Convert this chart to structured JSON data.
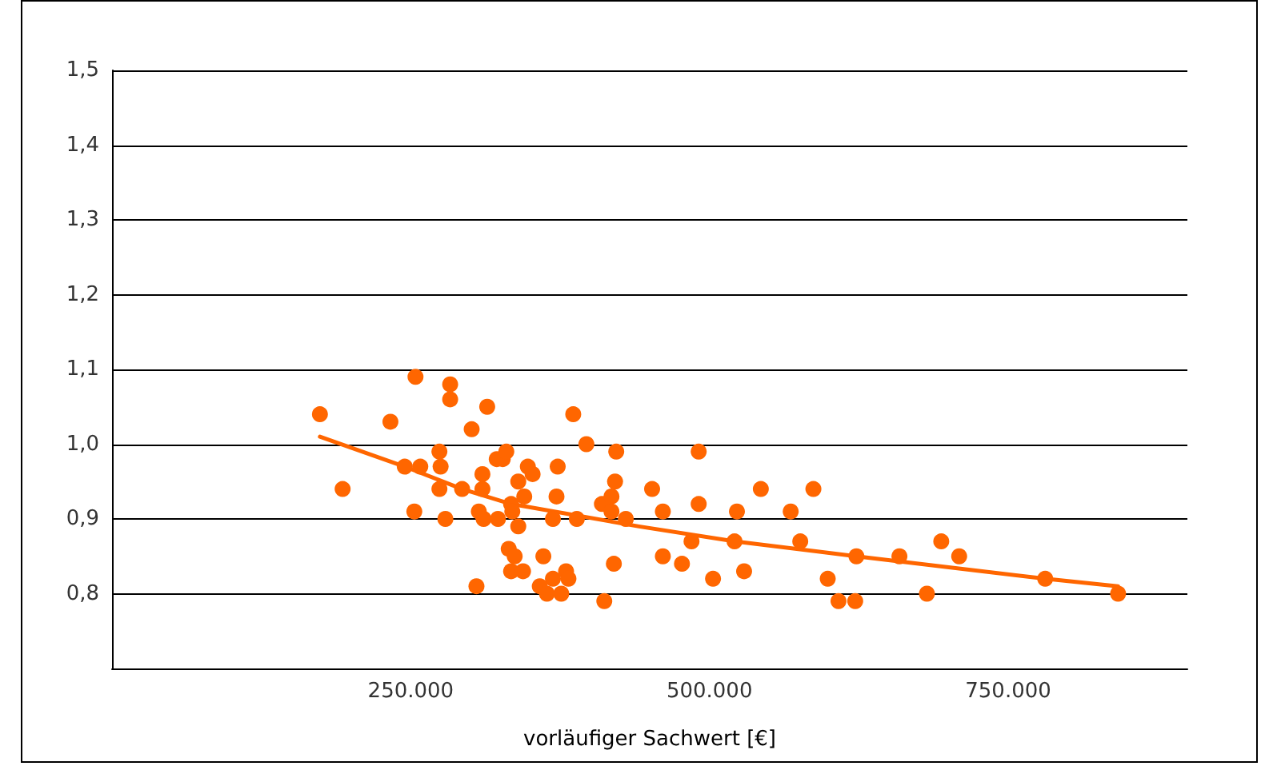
{
  "chart_data": {
    "type": "scatter",
    "xlabel": "vorläufiger Sachwert [€]",
    "xlim": [
      0,
      900000
    ],
    "xticks": [
      {
        "value": 250000,
        "label": "250.000"
      },
      {
        "value": 500000,
        "label": "500.000"
      },
      {
        "value": 750000,
        "label": "750.000"
      }
    ],
    "ylim": [
      0.7,
      1.5
    ],
    "yticks": [
      {
        "value": 0.8,
        "label": "0,8"
      },
      {
        "value": 0.9,
        "label": "0,9"
      },
      {
        "value": 1.0,
        "label": "1,0"
      },
      {
        "value": 1.1,
        "label": "1,1"
      },
      {
        "value": 1.2,
        "label": "1,2"
      },
      {
        "value": 1.3,
        "label": "1,3"
      },
      {
        "value": 1.4,
        "label": "1,4"
      },
      {
        "value": 1.5,
        "label": "1,5"
      }
    ],
    "grid": "y",
    "series": [
      {
        "marker": "circle",
        "color": "#ff6600",
        "x": [
          174000,
          193000,
          233000,
          254000,
          253000,
          245000,
          258000,
          274000,
          275000,
          274000,
          279000,
          283000,
          283000,
          293000,
          301000,
          305000,
          314000,
          310000,
          310000,
          307000,
          311000,
          323000,
          322000,
          327000,
          330000,
          340000,
          334000,
          335000,
          345000,
          348000,
          352000,
          340000,
          332000,
          337000,
          334000,
          344000,
          361000,
          358000,
          364000,
          369000,
          376000,
          380000,
          382000,
          369000,
          372000,
          373000,
          386000,
          389000,
          397000,
          410000,
          418000,
          418000,
          421000,
          422000,
          430000,
          412000,
          420000,
          452000,
          461000,
          461000,
          477000,
          485000,
          491000,
          491000,
          503000,
          523000,
          521000,
          529000,
          543000,
          568000,
          576000,
          587000,
          599000,
          608000,
          622000,
          623000,
          659000,
          682000,
          694000,
          709000,
          781000,
          842000
        ],
        "values": [
          1.04,
          0.94,
          1.03,
          1.09,
          0.91,
          0.97,
          0.97,
          0.99,
          0.97,
          0.94,
          0.9,
          1.08,
          1.06,
          0.94,
          1.02,
          0.81,
          1.05,
          0.96,
          0.94,
          0.91,
          0.9,
          0.9,
          0.98,
          0.98,
          0.99,
          0.95,
          0.92,
          0.91,
          0.93,
          0.97,
          0.96,
          0.89,
          0.86,
          0.85,
          0.83,
          0.83,
          0.85,
          0.81,
          0.8,
          0.82,
          0.8,
          0.83,
          0.82,
          0.9,
          0.93,
          0.97,
          1.04,
          0.9,
          1.0,
          0.92,
          0.93,
          0.91,
          0.95,
          0.99,
          0.9,
          0.79,
          0.84,
          0.94,
          0.91,
          0.85,
          0.84,
          0.87,
          0.99,
          0.92,
          0.82,
          0.91,
          0.87,
          0.83,
          0.94,
          0.91,
          0.87,
          0.94,
          0.82,
          0.79,
          0.79,
          0.85,
          0.85,
          0.8,
          0.87,
          0.85,
          0.82,
          0.8
        ]
      },
      {
        "type": "line",
        "marker": "none",
        "line_style": "solid",
        "color": "#ff6600",
        "x": [
          174000,
          245000,
          293000,
          334000,
          441000,
          521000,
          623000,
          781000,
          842000
        ],
        "values": [
          1.01,
          0.97,
          0.94,
          0.92,
          0.89,
          0.87,
          0.85,
          0.82,
          0.81
        ]
      }
    ]
  }
}
